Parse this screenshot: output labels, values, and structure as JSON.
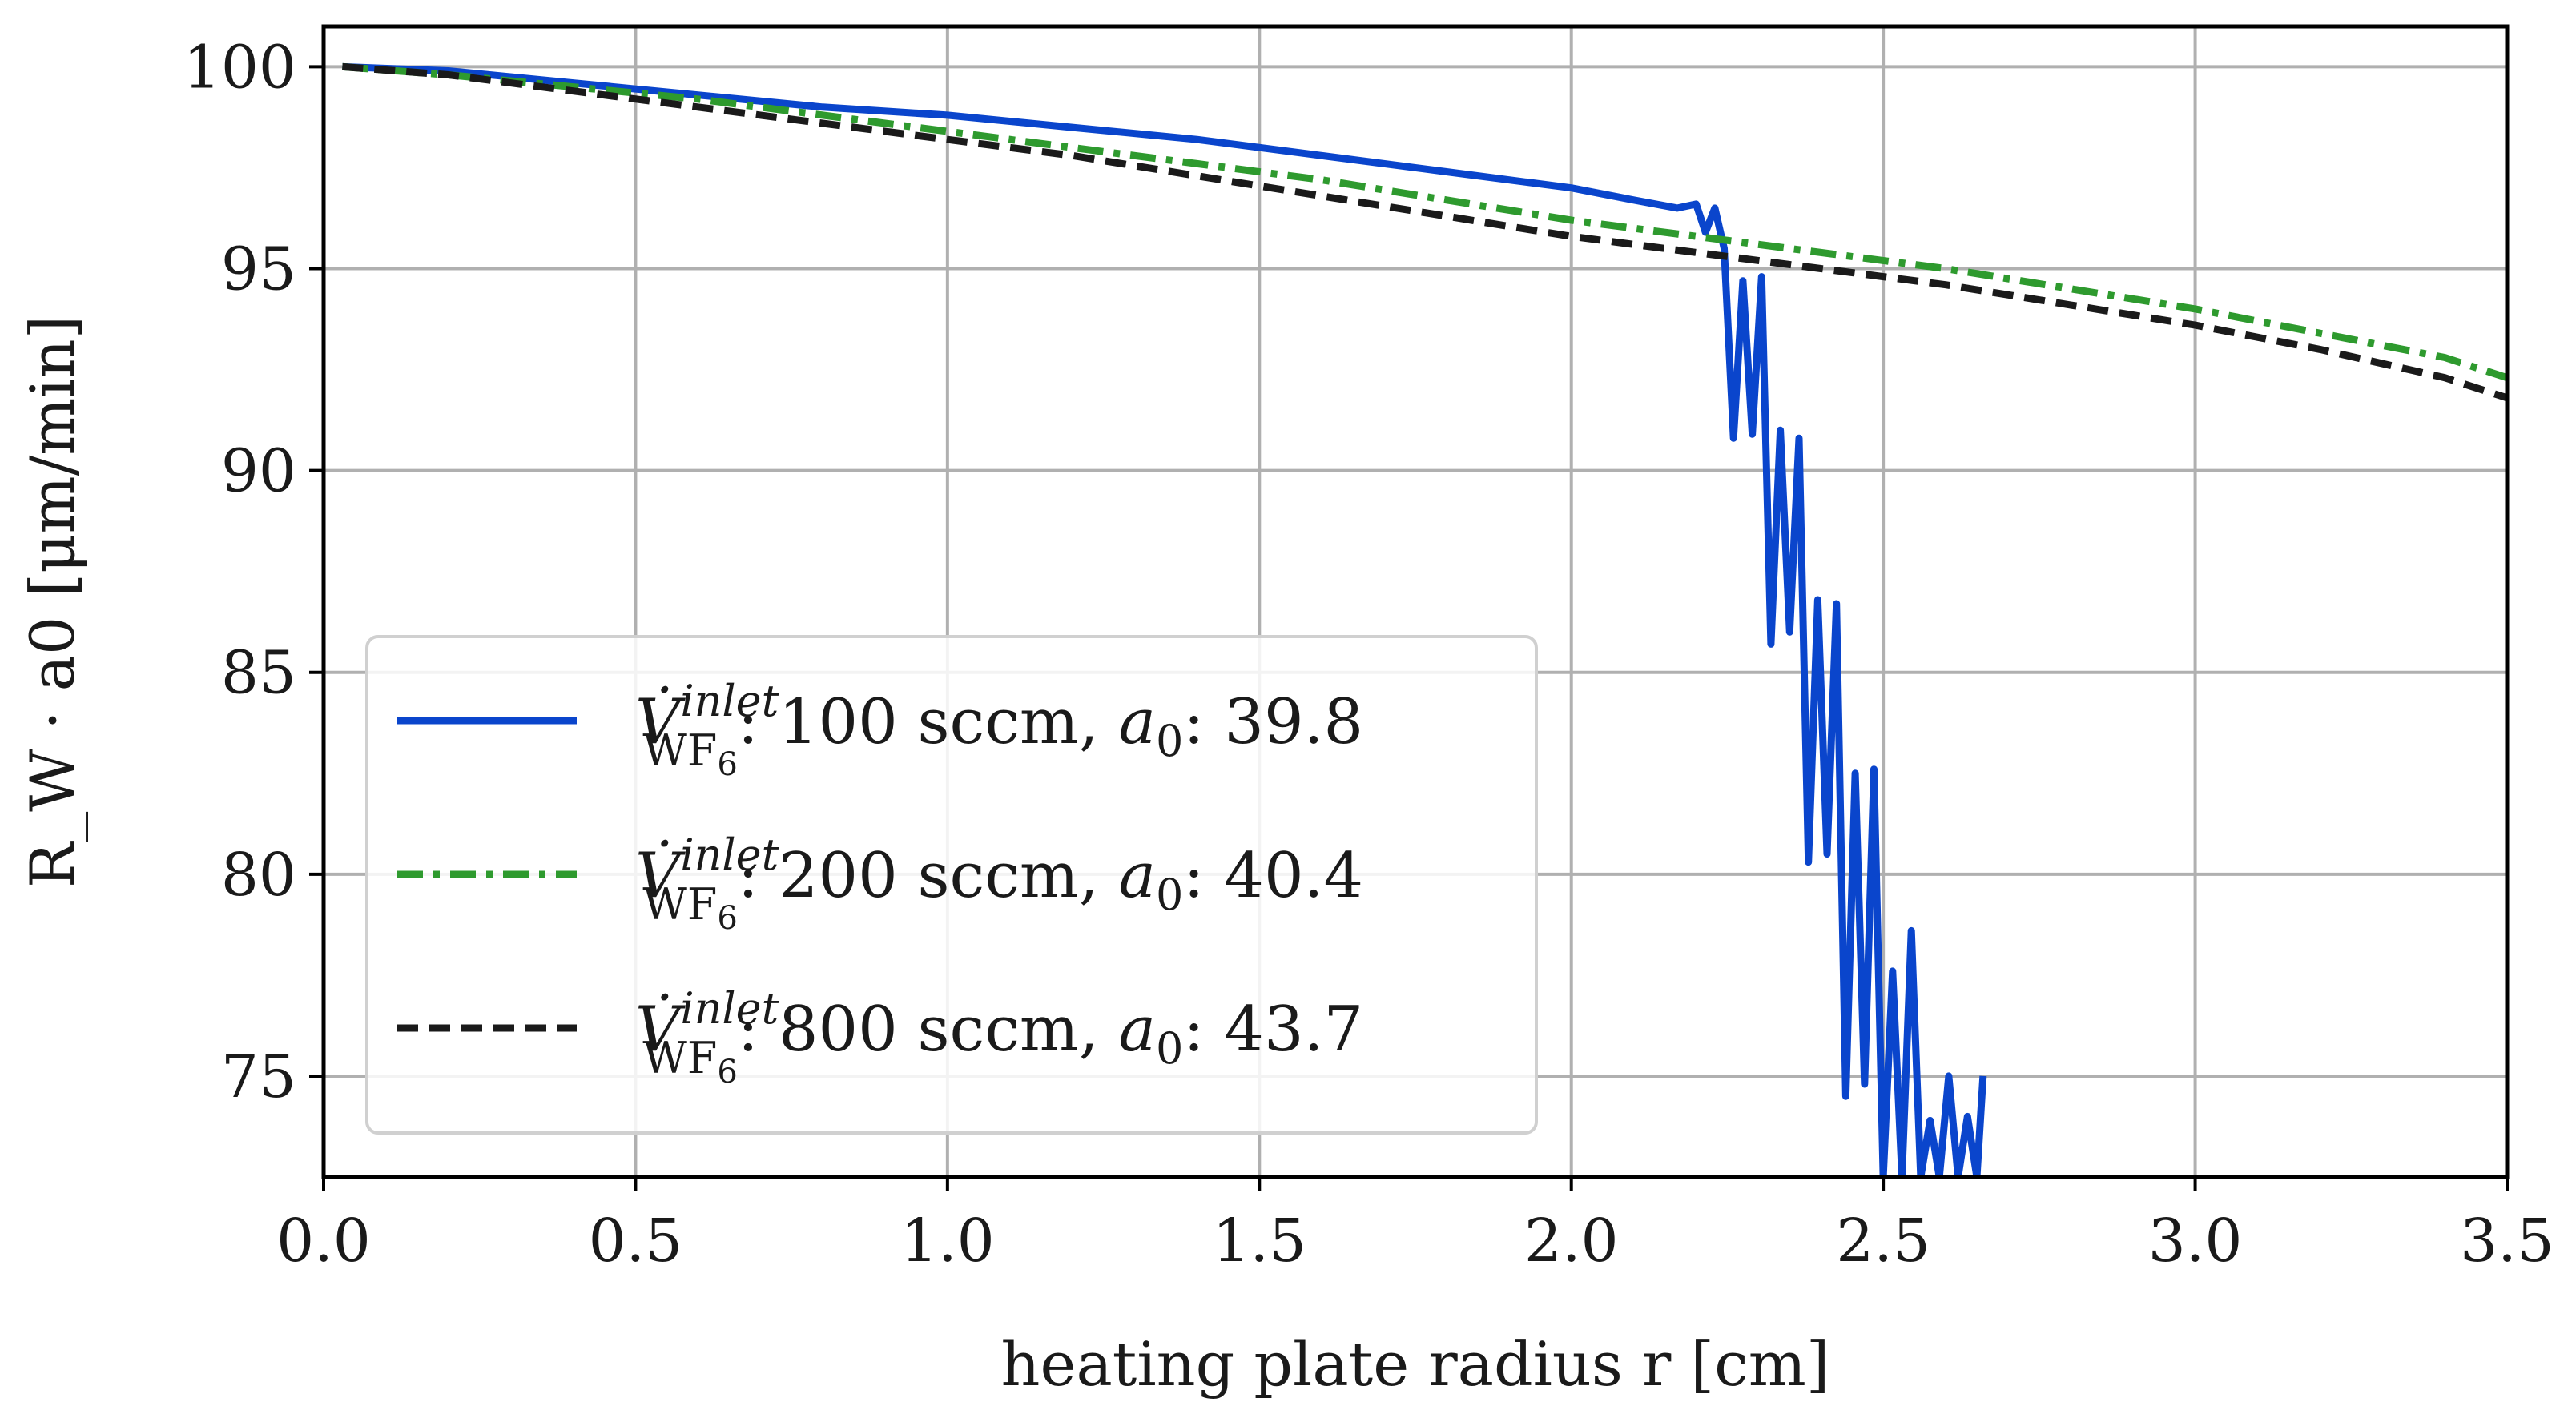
{
  "chart_data": {
    "type": "line",
    "title": "",
    "xlabel": "heating plate radius r [cm]",
    "ylabel": "R_W · a0 [μm/min]",
    "xlim": [
      0.0,
      3.5
    ],
    "ylim": [
      72.5,
      101.0
    ],
    "x_ticks": [
      0.0,
      0.5,
      1.0,
      1.5,
      2.0,
      2.5,
      3.0,
      3.5
    ],
    "x_tick_labels": [
      "0.0",
      "0.5",
      "1.0",
      "1.5",
      "2.0",
      "2.5",
      "3.0",
      "3.5"
    ],
    "y_ticks": [
      75,
      80,
      85,
      90,
      95,
      100
    ],
    "y_tick_labels": [
      "75",
      "80",
      "85",
      "90",
      "95",
      "100"
    ],
    "grid": true,
    "legend_position": "bottom-left",
    "series": [
      {
        "name": "V̇_WF6^inlet: 100 sccm, a0: 39.8",
        "legend_prefix": "V̇",
        "legend_sup": "inlet",
        "legend_sub": "WF",
        "legend_sub_sub": "6",
        "legend_rest": ": 100 sccm, ",
        "legend_a": "a",
        "legend_a_sub": "0",
        "legend_value": ": 39.8",
        "color": "#0a45cc",
        "dash": "solid",
        "x": [
          0.03,
          0.2,
          0.4,
          0.6,
          0.8,
          1.0,
          1.2,
          1.4,
          1.6,
          1.8,
          2.0,
          2.1,
          2.17,
          2.2,
          2.215,
          2.23,
          2.245,
          2.26,
          2.275,
          2.29,
          2.305,
          2.32,
          2.335,
          2.35,
          2.365,
          2.38,
          2.395,
          2.41,
          2.425,
          2.44,
          2.455,
          2.47,
          2.485,
          2.5,
          2.515,
          2.53,
          2.545,
          2.56,
          2.575,
          2.59,
          2.605,
          2.62,
          2.635,
          2.65,
          2.66
        ],
        "values": [
          100.0,
          99.9,
          99.6,
          99.3,
          99.0,
          98.8,
          98.5,
          98.2,
          97.8,
          97.4,
          97.0,
          96.7,
          96.5,
          96.6,
          95.9,
          96.5,
          95.5,
          90.8,
          94.7,
          90.9,
          94.8,
          85.7,
          91.0,
          86.0,
          90.8,
          80.3,
          86.8,
          80.5,
          86.7,
          74.5,
          82.5,
          74.8,
          82.6,
          72.5,
          77.6,
          72.5,
          78.6,
          72.5,
          73.9,
          72.5,
          75.0,
          72.5,
          74.0,
          72.5,
          75.0
        ]
      },
      {
        "name": "V̇_WF6^inlet: 200 sccm, a0: 40.4",
        "legend_prefix": "V̇",
        "legend_sup": "inlet",
        "legend_sub": "WF",
        "legend_sub_sub": "6",
        "legend_rest": ": 200 sccm, ",
        "legend_a": "a",
        "legend_a_sub": "0",
        "legend_value": ": 40.4",
        "color": "#2e9a2e",
        "dash": "dashdot",
        "x": [
          0.03,
          0.2,
          0.4,
          0.6,
          0.8,
          1.0,
          1.2,
          1.4,
          1.6,
          1.8,
          2.0,
          2.2,
          2.4,
          2.6,
          2.8,
          3.0,
          3.2,
          3.4,
          3.5
        ],
        "values": [
          100.0,
          99.8,
          99.5,
          99.2,
          98.8,
          98.4,
          98.0,
          97.6,
          97.2,
          96.7,
          96.2,
          95.8,
          95.4,
          95.0,
          94.5,
          94.0,
          93.4,
          92.8,
          92.3
        ]
      },
      {
        "name": "V̇_WF6^inlet: 800 sccm, a0: 43.7",
        "legend_prefix": "V̇",
        "legend_sup": "inlet",
        "legend_sub": "WF",
        "legend_sub_sub": "6",
        "legend_rest": ": 800 sccm, ",
        "legend_a": "a",
        "legend_a_sub": "0",
        "legend_value": ": 43.7",
        "color": "#1a1a1a",
        "dash": "dashed",
        "x": [
          0.03,
          0.2,
          0.4,
          0.6,
          0.8,
          1.0,
          1.2,
          1.4,
          1.6,
          1.8,
          2.0,
          2.2,
          2.4,
          2.6,
          2.8,
          3.0,
          3.2,
          3.4,
          3.5
        ],
        "values": [
          100.0,
          99.8,
          99.4,
          99.0,
          98.6,
          98.2,
          97.8,
          97.3,
          96.8,
          96.3,
          95.8,
          95.4,
          95.0,
          94.6,
          94.1,
          93.6,
          93.0,
          92.3,
          91.8
        ]
      }
    ]
  }
}
